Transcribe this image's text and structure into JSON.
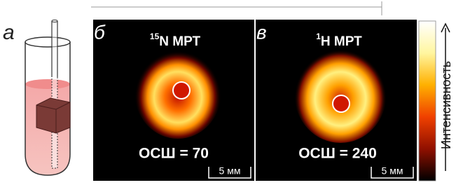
{
  "panels": [
    {
      "label": "а"
    },
    {
      "label": "б",
      "title": {
        "sup": "15",
        "text": "N МРТ"
      },
      "snr": "ОСШ = 70",
      "scale": "5 мм"
    },
    {
      "label": "в",
      "title": {
        "sup": "1",
        "text": "H МРТ"
      },
      "snr": "ОСШ = 240",
      "scale": "5 мм"
    }
  ],
  "colorbar": {
    "label": "Интенсивность"
  }
}
